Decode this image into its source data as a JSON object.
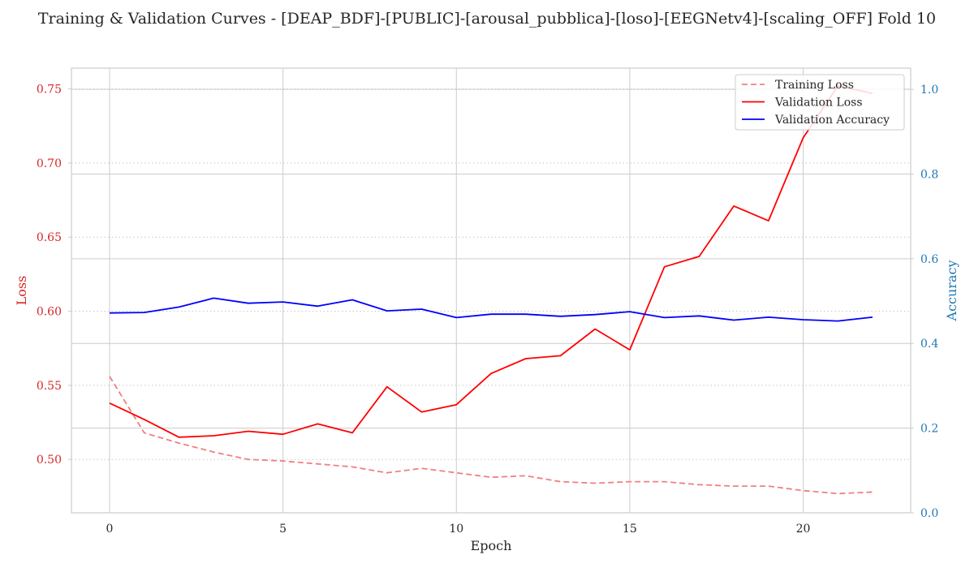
{
  "chart_data": {
    "type": "line",
    "title": "Training & Validation Curves - [DEAP_BDF]-[PUBLIC]-[arousal_pubblica]-[loso]-[EEGNetv4]-[scaling_OFF] Fold 10",
    "xlabel": "Epoch",
    "ylabel_left": "Loss",
    "ylabel_right": "Accuracy",
    "xlim": [
      -1.1,
      23.1
    ],
    "ylim_left": [
      0.464,
      0.764
    ],
    "ylim_right": [
      0.0,
      1.05
    ],
    "x_ticks": [
      "0",
      "5",
      "10",
      "15",
      "20"
    ],
    "y_ticks_left": [
      "0.50",
      "0.55",
      "0.60",
      "0.65",
      "0.70",
      "0.75"
    ],
    "y_ticks_right": [
      "0.0",
      "0.2",
      "0.4",
      "0.6",
      "0.8",
      "1.0"
    ],
    "grid": true,
    "legend_position": "top-right",
    "x": [
      0,
      1,
      2,
      3,
      4,
      5,
      6,
      7,
      8,
      9,
      10,
      11,
      12,
      13,
      14,
      15,
      16,
      17,
      18,
      19,
      20,
      21,
      22
    ],
    "series": [
      {
        "name": "Training Loss",
        "axis": "left",
        "color": "#f08080",
        "style": "dashed",
        "values": [
          0.556,
          0.518,
          0.511,
          0.505,
          0.5,
          0.499,
          0.497,
          0.495,
          0.491,
          0.494,
          0.491,
          0.488,
          0.489,
          0.485,
          0.484,
          0.485,
          0.485,
          0.483,
          0.482,
          0.482,
          0.479,
          0.477,
          0.478
        ]
      },
      {
        "name": "Validation Loss",
        "axis": "left",
        "color": "#ff0000",
        "style": "solid",
        "values": [
          0.538,
          0.527,
          0.515,
          0.516,
          0.519,
          0.517,
          0.524,
          0.518,
          0.549,
          0.532,
          0.537,
          0.558,
          0.568,
          0.57,
          0.588,
          0.574,
          0.63,
          0.637,
          0.671,
          0.661,
          0.717,
          0.752,
          0.747
        ]
      },
      {
        "name": "Validation Accuracy",
        "axis": "right",
        "color": "#0000ff",
        "style": "solid",
        "values": [
          0.472,
          0.473,
          0.486,
          0.507,
          0.495,
          0.498,
          0.488,
          0.503,
          0.477,
          0.481,
          0.461,
          0.469,
          0.469,
          0.464,
          0.468,
          0.475,
          0.461,
          0.465,
          0.455,
          0.462,
          0.456,
          0.453,
          0.462
        ]
      }
    ]
  }
}
